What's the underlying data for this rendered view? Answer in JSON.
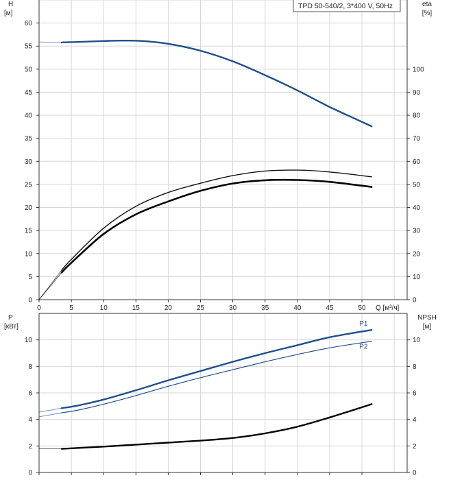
{
  "title_box": "TPD 50-540/2, 3*400 V, 50Hz",
  "chart_data": [
    {
      "type": "line",
      "panel": "top",
      "left_axis": {
        "label_line1": "H",
        "label_line2": "[м]",
        "ylim": [
          0,
          65
        ],
        "ticks": [
          "0",
          "5",
          "10",
          "15",
          "20",
          "25",
          "30",
          "35",
          "40",
          "45",
          "50",
          "55",
          "60"
        ]
      },
      "right_axis": {
        "label_line1": "eta",
        "label_line2": "[%]",
        "ylim": [
          0,
          130
        ],
        "ticks": [
          "0",
          "10",
          "20",
          "30",
          "40",
          "50",
          "60",
          "70",
          "80",
          "90",
          "100"
        ]
      },
      "x_axis": {
        "label": "Q [м³/ч]",
        "xlim": [
          0,
          57
        ],
        "ticks": [
          "0",
          "5",
          "10",
          "15",
          "20",
          "25",
          "30",
          "35",
          "40",
          "45",
          "50"
        ]
      },
      "grid": true,
      "series": [
        {
          "axis": "left",
          "color": "#1f4e8c",
          "width": 2.4,
          "ghost_until": 3.5,
          "x": [
            0,
            2,
            3.5,
            6,
            10,
            13,
            16,
            20,
            25,
            30,
            35,
            40,
            45,
            51.5
          ],
          "y": [
            55.9,
            55.8,
            55.8,
            55.9,
            56.1,
            56.2,
            56.1,
            55.5,
            54.0,
            51.7,
            48.7,
            45.4,
            41.8,
            37.6
          ]
        },
        {
          "axis": "right",
          "color": "#111111",
          "width": 1.4,
          "ghost_until": 3.5,
          "x": [
            0,
            3.5,
            5,
            10,
            15,
            20,
            25,
            30,
            35,
            40,
            45,
            51.5
          ],
          "y": [
            0,
            12.8,
            17.5,
            31,
            40.5,
            46.5,
            50.5,
            53.8,
            55.8,
            56.2,
            55.4,
            53.3
          ]
        },
        {
          "axis": "right",
          "color": "#000000",
          "width": 2.6,
          "ghost_until": 3.5,
          "x": [
            0,
            3.5,
            5,
            10,
            15,
            20,
            25,
            30,
            35,
            40,
            45,
            51.5
          ],
          "y": [
            0,
            11.8,
            16,
            28.5,
            37,
            42.6,
            47.2,
            50.4,
            51.8,
            51.9,
            51.1,
            48.9
          ]
        }
      ]
    },
    {
      "type": "line",
      "panel": "bottom",
      "left_axis": {
        "label_line1": "P",
        "label_line2": "[кВт]",
        "ylim": [
          0,
          12
        ],
        "ticks": [
          "0",
          "2",
          "4",
          "6",
          "8",
          "10"
        ]
      },
      "right_axis": {
        "label_line1": "NPSH",
        "label_line2": "[м]",
        "ylim": [
          0,
          12
        ],
        "ticks": [
          "0",
          "2",
          "4",
          "6",
          "8",
          "10"
        ]
      },
      "x_axis": {
        "xlim": [
          0,
          57
        ]
      },
      "grid": true,
      "series": [
        {
          "name": "P1",
          "axis": "left",
          "color": "#1f4e8c",
          "width": 2.4,
          "ghost_until": 3.5,
          "x": [
            0,
            3.5,
            6,
            10,
            15,
            20,
            25,
            30,
            35,
            40,
            45,
            51.5
          ],
          "y": [
            4.55,
            4.85,
            5.05,
            5.5,
            6.2,
            6.95,
            7.65,
            8.35,
            9.0,
            9.6,
            10.2,
            10.75
          ]
        },
        {
          "name": "P2",
          "axis": "left",
          "color": "#1f4e8c",
          "width": 1.2,
          "ghost_until": 3.5,
          "x": [
            0,
            3.5,
            6,
            10,
            15,
            20,
            25,
            30,
            35,
            40,
            45,
            51.5
          ],
          "y": [
            4.2,
            4.5,
            4.7,
            5.15,
            5.8,
            6.5,
            7.15,
            7.75,
            8.35,
            8.9,
            9.4,
            9.9
          ]
        },
        {
          "axis": "right",
          "color": "#000000",
          "width": 2.4,
          "ghost_until": 3.5,
          "x": [
            0,
            3.5,
            10,
            15,
            20,
            25,
            30,
            35,
            40,
            45,
            51.5
          ],
          "y": [
            1.8,
            1.78,
            1.95,
            2.1,
            2.25,
            2.4,
            2.6,
            2.95,
            3.45,
            4.15,
            5.15
          ]
        }
      ]
    }
  ]
}
